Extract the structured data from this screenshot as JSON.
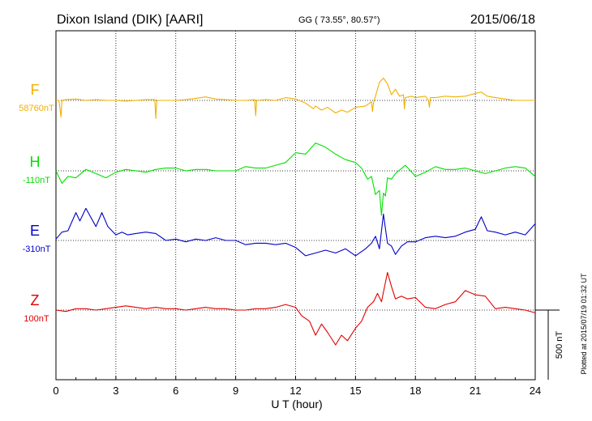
{
  "header": {
    "station": "Dixon Island (DIK)  [AARI]",
    "coords": "GG ( 73.55°,  80.57°)",
    "date": "2015/06/18"
  },
  "footer": {
    "plotted": "Plotted at 2015/07/19 01:32 UT"
  },
  "scale_label": "500 nT",
  "colors": {
    "F": "#f0b000",
    "H": "#00e000",
    "E": "#0000cc",
    "Z": "#e00000",
    "axis": "#000000",
    "grid": "#000000"
  },
  "chart_data": {
    "type": "line",
    "title": "",
    "xlabel": "U T (hour)",
    "ylabel": "",
    "xlim": [
      0,
      24
    ],
    "xticks": [
      "0",
      "3",
      "6",
      "9",
      "12",
      "15",
      "18",
      "21",
      "24"
    ],
    "grid": "dotted",
    "scale_bar_nT": 500,
    "series": [
      {
        "name": "F",
        "baseline_label": "58760nT",
        "x": [
          0,
          0.15,
          0.25,
          0.3,
          0.5,
          1,
          1.5,
          2,
          2.5,
          3,
          3.5,
          4,
          4.5,
          4.95,
          5,
          5.05,
          5.5,
          6,
          6.5,
          7,
          7.5,
          8,
          8.5,
          9,
          9.5,
          9.95,
          10,
          10.05,
          10.5,
          11,
          11.5,
          12,
          12.5,
          12.9,
          13,
          13.3,
          13.6,
          14,
          14.3,
          14.6,
          15,
          15.5,
          15.8,
          15.85,
          15.9,
          16,
          16.2,
          16.4,
          16.6,
          16.8,
          17,
          17.2,
          17.4,
          17.45,
          17.5,
          17.8,
          18,
          18.5,
          18.65,
          18.7,
          18.75,
          19,
          19.5,
          20,
          20.5,
          21,
          21.3,
          21.6,
          22,
          22.5,
          23,
          23.5,
          24
        ],
        "y": [
          0,
          0,
          -120,
          0,
          5,
          10,
          0,
          5,
          0,
          0,
          -5,
          0,
          5,
          5,
          -130,
          0,
          0,
          0,
          5,
          15,
          25,
          10,
          5,
          0,
          0,
          5,
          -110,
          0,
          5,
          0,
          20,
          10,
          -20,
          -60,
          -40,
          -70,
          -50,
          -90,
          -70,
          -85,
          -50,
          -40,
          -10,
          -80,
          -20,
          30,
          130,
          160,
          120,
          40,
          80,
          30,
          40,
          -60,
          20,
          30,
          20,
          30,
          0,
          -50,
          20,
          20,
          30,
          25,
          30,
          50,
          60,
          30,
          20,
          10,
          0,
          0,
          0
        ]
      },
      {
        "name": "H",
        "baseline_label": "-110nT",
        "x": [
          0,
          0.3,
          0.6,
          1,
          1.5,
          2,
          2.5,
          3,
          3.5,
          4,
          4.5,
          5,
          5.5,
          6,
          6.5,
          7,
          7.5,
          8,
          8.5,
          9,
          9.5,
          10,
          10.5,
          11,
          11.5,
          12,
          12.5,
          13,
          13.5,
          14,
          14.5,
          15,
          15.3,
          15.6,
          15.8,
          16,
          16.2,
          16.3,
          16.4,
          16.5,
          16.6,
          16.8,
          17,
          17.5,
          18,
          18.5,
          19,
          19.5,
          20,
          20.5,
          21,
          21.5,
          22,
          22.5,
          23,
          23.5,
          24
        ],
        "y": [
          0,
          -90,
          -40,
          -50,
          10,
          -20,
          -50,
          -10,
          10,
          0,
          -10,
          10,
          20,
          20,
          0,
          10,
          10,
          0,
          0,
          0,
          30,
          20,
          20,
          40,
          60,
          130,
          120,
          200,
          170,
          120,
          80,
          60,
          20,
          -60,
          -40,
          -170,
          -140,
          -320,
          -160,
          -180,
          -50,
          -60,
          -20,
          40,
          -40,
          -10,
          30,
          10,
          10,
          20,
          0,
          -20,
          0,
          20,
          30,
          20,
          -40
        ]
      },
      {
        "name": "E",
        "baseline_label": "-310nT",
        "x": [
          0,
          0.3,
          0.6,
          1,
          1.2,
          1.5,
          2,
          2.3,
          2.6,
          3,
          3.3,
          3.6,
          4,
          4.5,
          5,
          5.5,
          6,
          6.5,
          7,
          7.5,
          8,
          8.5,
          9,
          9.5,
          10,
          10.5,
          11,
          11.5,
          12,
          12.5,
          13,
          13.5,
          14,
          14.5,
          15,
          15.5,
          15.8,
          16,
          16.2,
          16.4,
          16.6,
          16.8,
          17,
          17.3,
          17.6,
          18,
          18.5,
          19,
          19.5,
          20,
          20.5,
          21,
          21.3,
          21.6,
          22,
          22.5,
          23,
          23.5,
          24
        ],
        "y": [
          10,
          60,
          70,
          200,
          140,
          230,
          100,
          200,
          100,
          40,
          60,
          40,
          50,
          60,
          50,
          0,
          10,
          -10,
          10,
          0,
          20,
          0,
          0,
          -30,
          -20,
          -20,
          -30,
          -20,
          -50,
          -110,
          -90,
          -70,
          -90,
          -60,
          -110,
          -60,
          -20,
          30,
          -60,
          190,
          -20,
          -40,
          -100,
          -40,
          -10,
          -10,
          20,
          30,
          20,
          30,
          60,
          80,
          170,
          70,
          60,
          40,
          60,
          40,
          120
        ]
      },
      {
        "name": "Z",
        "baseline_label": "100nT",
        "x": [
          0,
          0.5,
          1,
          1.5,
          2,
          2.5,
          3,
          3.5,
          4,
          4.5,
          5,
          5.5,
          6,
          6.5,
          7,
          7.5,
          8,
          8.5,
          9,
          9.5,
          10,
          10.5,
          11,
          11.5,
          12,
          12.3,
          12.7,
          13,
          13.3,
          13.6,
          14,
          14.3,
          14.6,
          15,
          15.3,
          15.6,
          15.9,
          16.1,
          16.3,
          16.6,
          16.8,
          17,
          17.3,
          17.6,
          18,
          18.5,
          19,
          19.5,
          20,
          20.5,
          21,
          21.5,
          22,
          22.5,
          23,
          23.5,
          24
        ],
        "y": [
          0,
          -10,
          10,
          10,
          0,
          10,
          20,
          30,
          20,
          10,
          20,
          10,
          10,
          0,
          10,
          20,
          10,
          10,
          0,
          0,
          10,
          10,
          20,
          40,
          20,
          -40,
          -80,
          -180,
          -100,
          -160,
          -250,
          -180,
          -220,
          -130,
          -80,
          20,
          60,
          120,
          60,
          270,
          170,
          80,
          100,
          80,
          90,
          20,
          10,
          40,
          60,
          140,
          110,
          100,
          10,
          20,
          10,
          0,
          -20
        ]
      }
    ]
  }
}
